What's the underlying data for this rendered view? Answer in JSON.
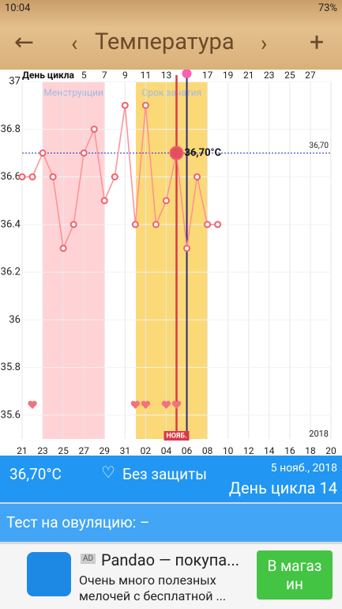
{
  "status_bar": {
    "time": "10:04",
    "battery": "73%"
  },
  "header": {
    "title": "Температура"
  },
  "chart_data": {
    "type": "line",
    "x_axis_title": "День цикла",
    "categories": [
      "21",
      null,
      "23",
      null,
      "25",
      null,
      "27",
      null,
      "29",
      null,
      "31",
      null,
      "02",
      null,
      "04",
      null,
      "06",
      null,
      "08",
      null,
      "10",
      null,
      "12",
      null,
      "14",
      null,
      "16",
      null,
      "18",
      null,
      "20"
    ],
    "cycle_day_labels": [
      null,
      null,
      null,
      null,
      null,
      null,
      "5",
      null,
      "7",
      null,
      "9",
      null,
      "11",
      null,
      "13",
      null,
      null,
      null,
      "17",
      null,
      "19",
      null,
      "21",
      null,
      "23",
      null,
      "25",
      null,
      "27",
      null,
      null
    ],
    "values": [
      36.6,
      36.6,
      36.7,
      36.6,
      36.3,
      36.4,
      36.7,
      36.8,
      36.5,
      36.6,
      36.9,
      36.4,
      36.9,
      36.4,
      36.5,
      36.7,
      36.3,
      36.6,
      36.4,
      36.4,
      null,
      null,
      null,
      null,
      null,
      null,
      null,
      null,
      null,
      null,
      null
    ],
    "color": "#ff8f94",
    "ylim": [
      35.5,
      37.05
    ],
    "yticks": [
      37,
      36.8,
      36.6,
      36.4,
      36.2,
      36,
      35.8,
      35.6
    ],
    "reference_line": {
      "value": 36.7,
      "label": "36,70"
    },
    "annotation": "36,70°C",
    "bands": [
      "Менструации",
      "Срок зачатия"
    ],
    "today_label": "НОЯБ.",
    "year": "2018"
  },
  "summary": {
    "temperature": "36,70°C",
    "protection": "Без защиты",
    "date": "5 нояб., 2018",
    "cycle_day": "День цикла 14"
  },
  "ovulation_test": "Тест на овуляцию: –",
  "ad": {
    "badge": "AD",
    "title": "Pandao — покупа...",
    "text": [
      "Очень много полезных",
      "мелочей с бесплатной ..."
    ],
    "button": [
      "В магаз",
      "ин"
    ]
  }
}
